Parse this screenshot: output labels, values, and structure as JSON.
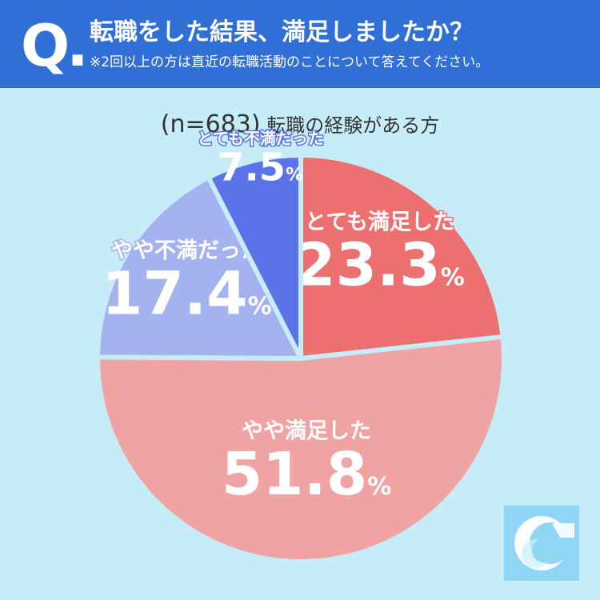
{
  "header": {
    "q_mark": "Q.",
    "title": "転職をした結果、満足しましたか？",
    "note": "※2回以上の方は直近の転職活動のことについて答えてください。"
  },
  "sample": {
    "n_label": "(n=683)",
    "desc": "転職の経験がある方"
  },
  "colors": {
    "header_bg": "#2f6fd6",
    "background": "#c6edf7"
  },
  "logo": {
    "icon": "crescent-c-logo-icon"
  },
  "chart_data": {
    "type": "pie",
    "start": "12 o'clock, clockwise",
    "slices": [
      {
        "label": "とても満足した",
        "value": 23.3,
        "color": "#ec7070"
      },
      {
        "label": "やや満足した",
        "value": 51.8,
        "color": "#f0a3a3"
      },
      {
        "label": "やや不満だった",
        "value": 17.4,
        "color": "#a4b2f0"
      },
      {
        "label": "とても不満だった",
        "value": 7.5,
        "color": "#5b73e8"
      }
    ],
    "unit": "%"
  }
}
